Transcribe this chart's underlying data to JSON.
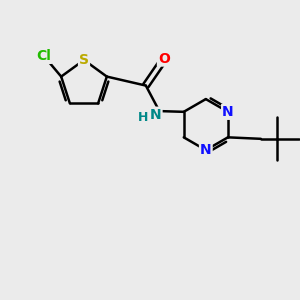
{
  "bg_color": "#ebebeb",
  "atom_colors": {
    "C": "#000000",
    "N": "#1010ff",
    "O": "#ff0000",
    "S": "#bbaa00",
    "Cl": "#22bb00",
    "H": "#008888"
  },
  "bond_color": "#000000",
  "bond_width": 1.8,
  "font_size": 10,
  "xlim": [
    0,
    10
  ],
  "ylim": [
    0,
    10
  ]
}
